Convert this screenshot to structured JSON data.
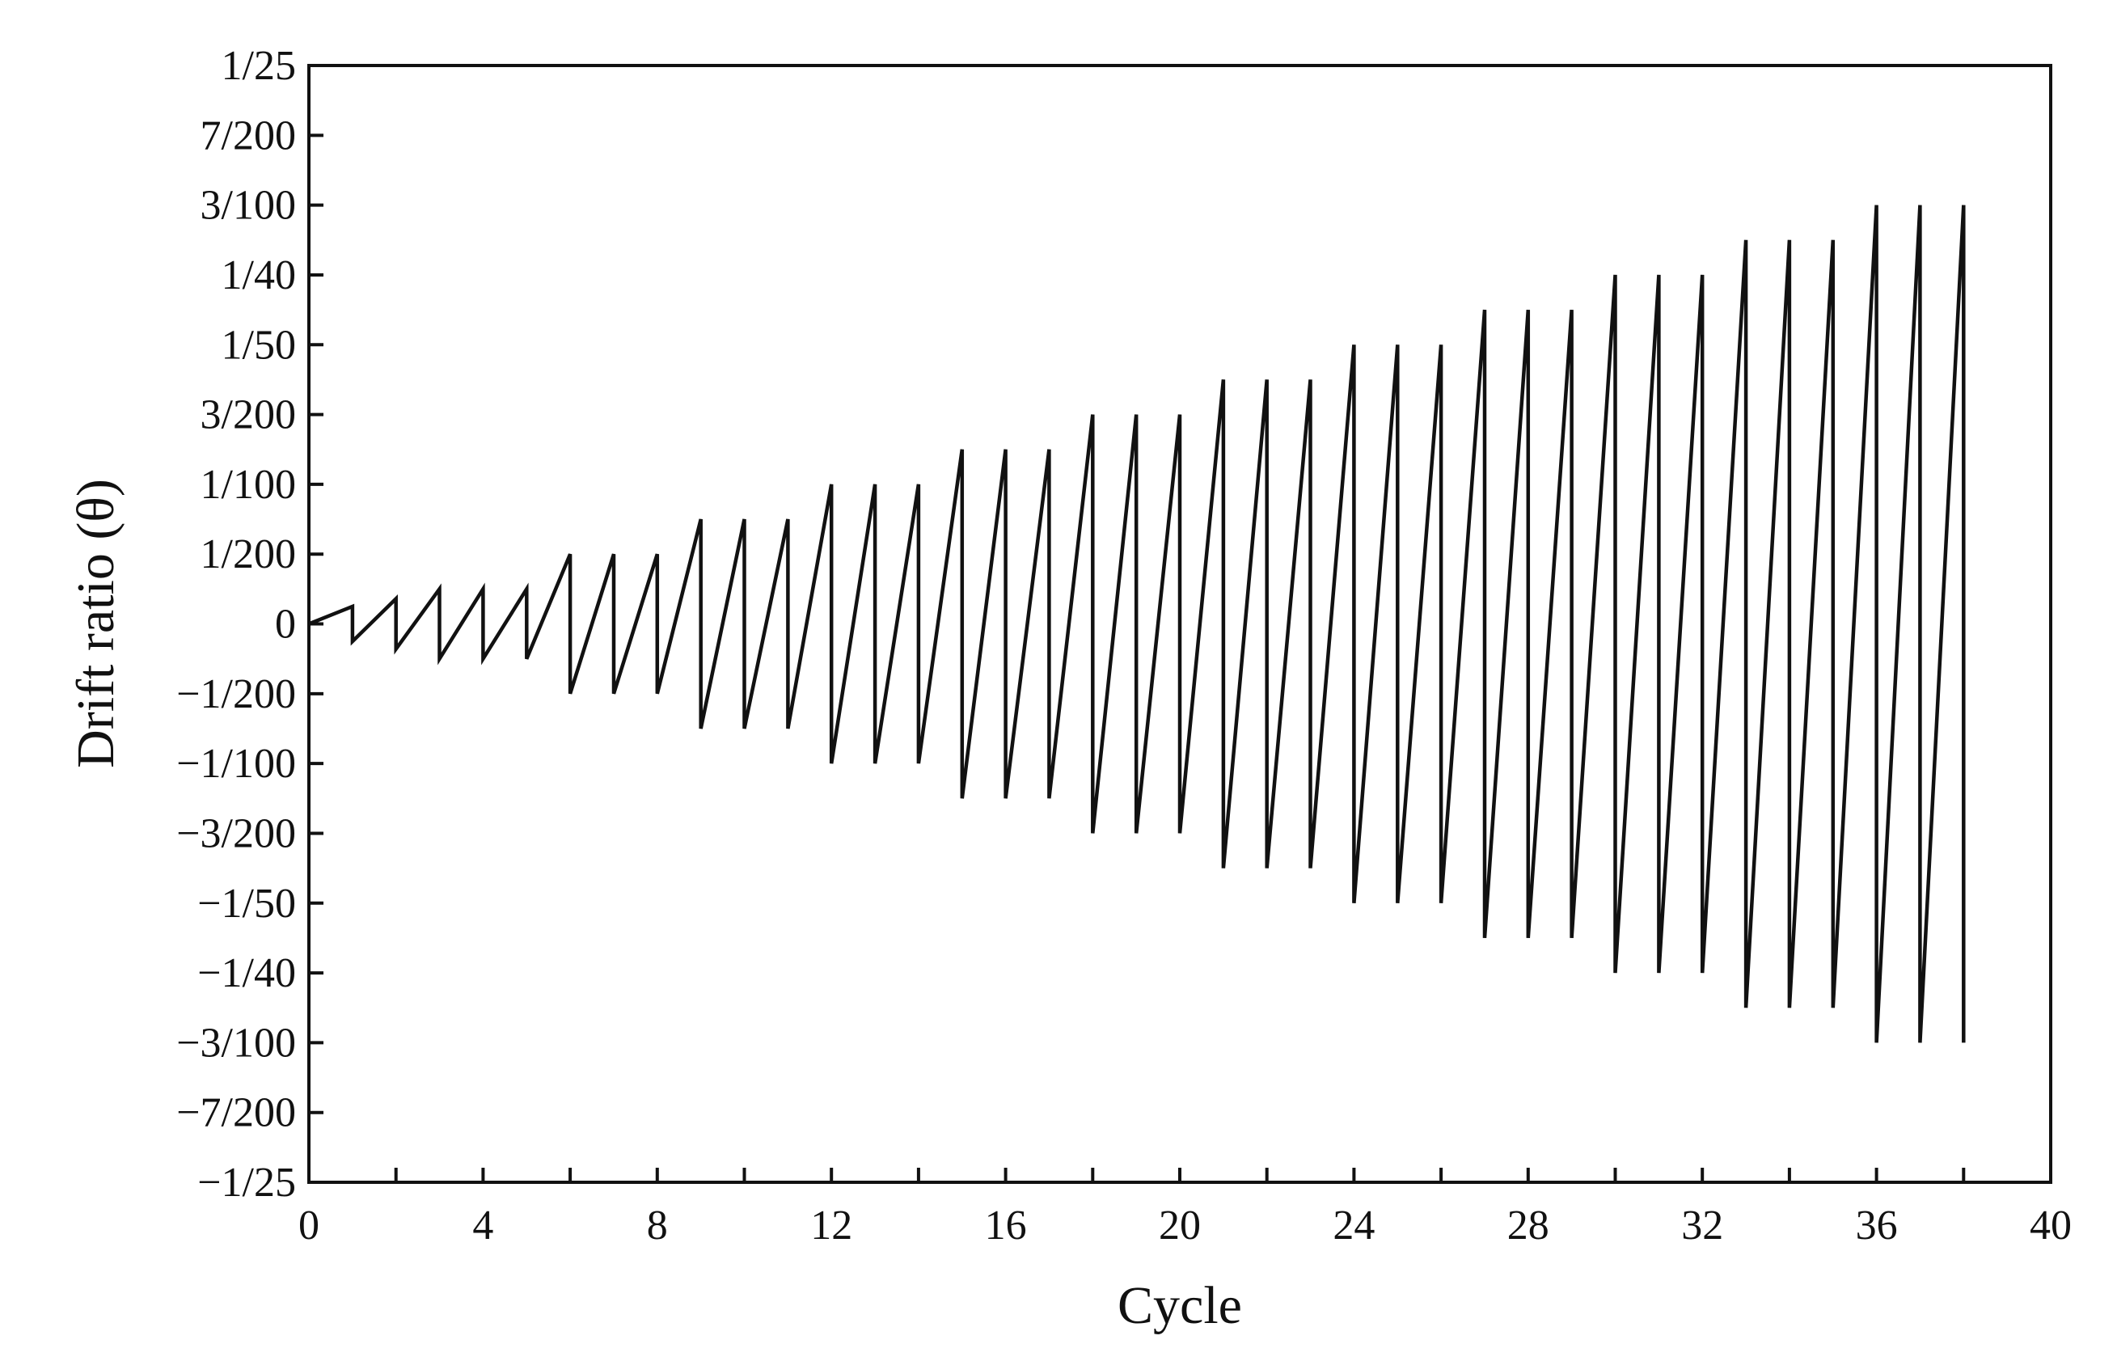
{
  "chart_data": {
    "type": "line",
    "title": "",
    "xlabel": "Cycle",
    "ylabel": "Drift ratio (θ)",
    "xlim": [
      0,
      40
    ],
    "ylim": [
      -0.04,
      0.04
    ],
    "grid": false,
    "legend": "none",
    "x_ticks": [
      0,
      4,
      8,
      12,
      16,
      20,
      24,
      28,
      32,
      36,
      40
    ],
    "x_tick_labels": [
      "0",
      "4",
      "8",
      "12",
      "16",
      "20",
      "24",
      "28",
      "32",
      "36",
      "40"
    ],
    "y_ticks": [
      0.04,
      0.035,
      0.03,
      0.025,
      0.02,
      0.015,
      0.01,
      0.005,
      0,
      -0.005,
      -0.01,
      -0.015,
      -0.02,
      -0.025,
      -0.03,
      -0.035,
      -0.04
    ],
    "y_tick_labels": [
      "1/25",
      "7/200",
      "3/100",
      "1/40",
      "1/50",
      "3/200",
      "1/100",
      "1/200",
      "0",
      "−1/200",
      "−1/100",
      "−3/200",
      "−1/50",
      "−1/40",
      "−3/100",
      "−7/200",
      "−1/25"
    ],
    "line_color": "#111111",
    "series": [
      {
        "x": [
          0,
          1,
          1,
          2,
          2,
          3,
          3,
          4,
          4,
          5,
          5,
          6,
          6,
          7,
          7,
          8,
          8,
          9,
          9,
          10,
          10,
          11,
          11,
          12,
          12,
          13,
          13,
          14,
          14,
          15,
          15,
          16,
          16,
          17,
          17,
          18,
          18,
          19,
          19,
          20,
          20,
          21,
          21,
          22,
          22,
          23,
          23,
          24,
          24,
          25,
          25,
          26,
          26,
          27,
          27,
          28,
          28,
          29,
          29,
          30,
          30,
          31,
          31,
          32,
          32,
          33,
          33,
          34,
          34,
          35,
          35,
          36,
          36,
          37,
          37,
          38,
          38
        ],
        "values": [
          0,
          0.00125,
          -0.00125,
          0.0018,
          -0.0018,
          0.0025,
          -0.0025,
          0.0025,
          -0.0025,
          0.0025,
          -0.0025,
          0.005,
          -0.005,
          0.005,
          -0.005,
          0.005,
          -0.005,
          0.0075,
          -0.0075,
          0.0075,
          -0.0075,
          0.0075,
          -0.0075,
          0.01,
          -0.01,
          0.01,
          -0.01,
          0.01,
          -0.01,
          0.0125,
          -0.0125,
          0.0125,
          -0.0125,
          0.0125,
          -0.0125,
          0.015,
          -0.015,
          0.015,
          -0.015,
          0.015,
          -0.015,
          0.0175,
          -0.0175,
          0.0175,
          -0.0175,
          0.0175,
          -0.0175,
          0.02,
          -0.02,
          0.02,
          -0.02,
          0.02,
          -0.02,
          0.0225,
          -0.0225,
          0.0225,
          -0.0225,
          0.0225,
          -0.0225,
          0.025,
          -0.025,
          0.025,
          -0.025,
          0.025,
          -0.025,
          0.0275,
          -0.0275,
          0.0275,
          -0.0275,
          0.0275,
          -0.0275,
          0.03,
          -0.03,
          0.03,
          -0.03,
          0.03,
          -0.03
        ]
      }
    ]
  }
}
